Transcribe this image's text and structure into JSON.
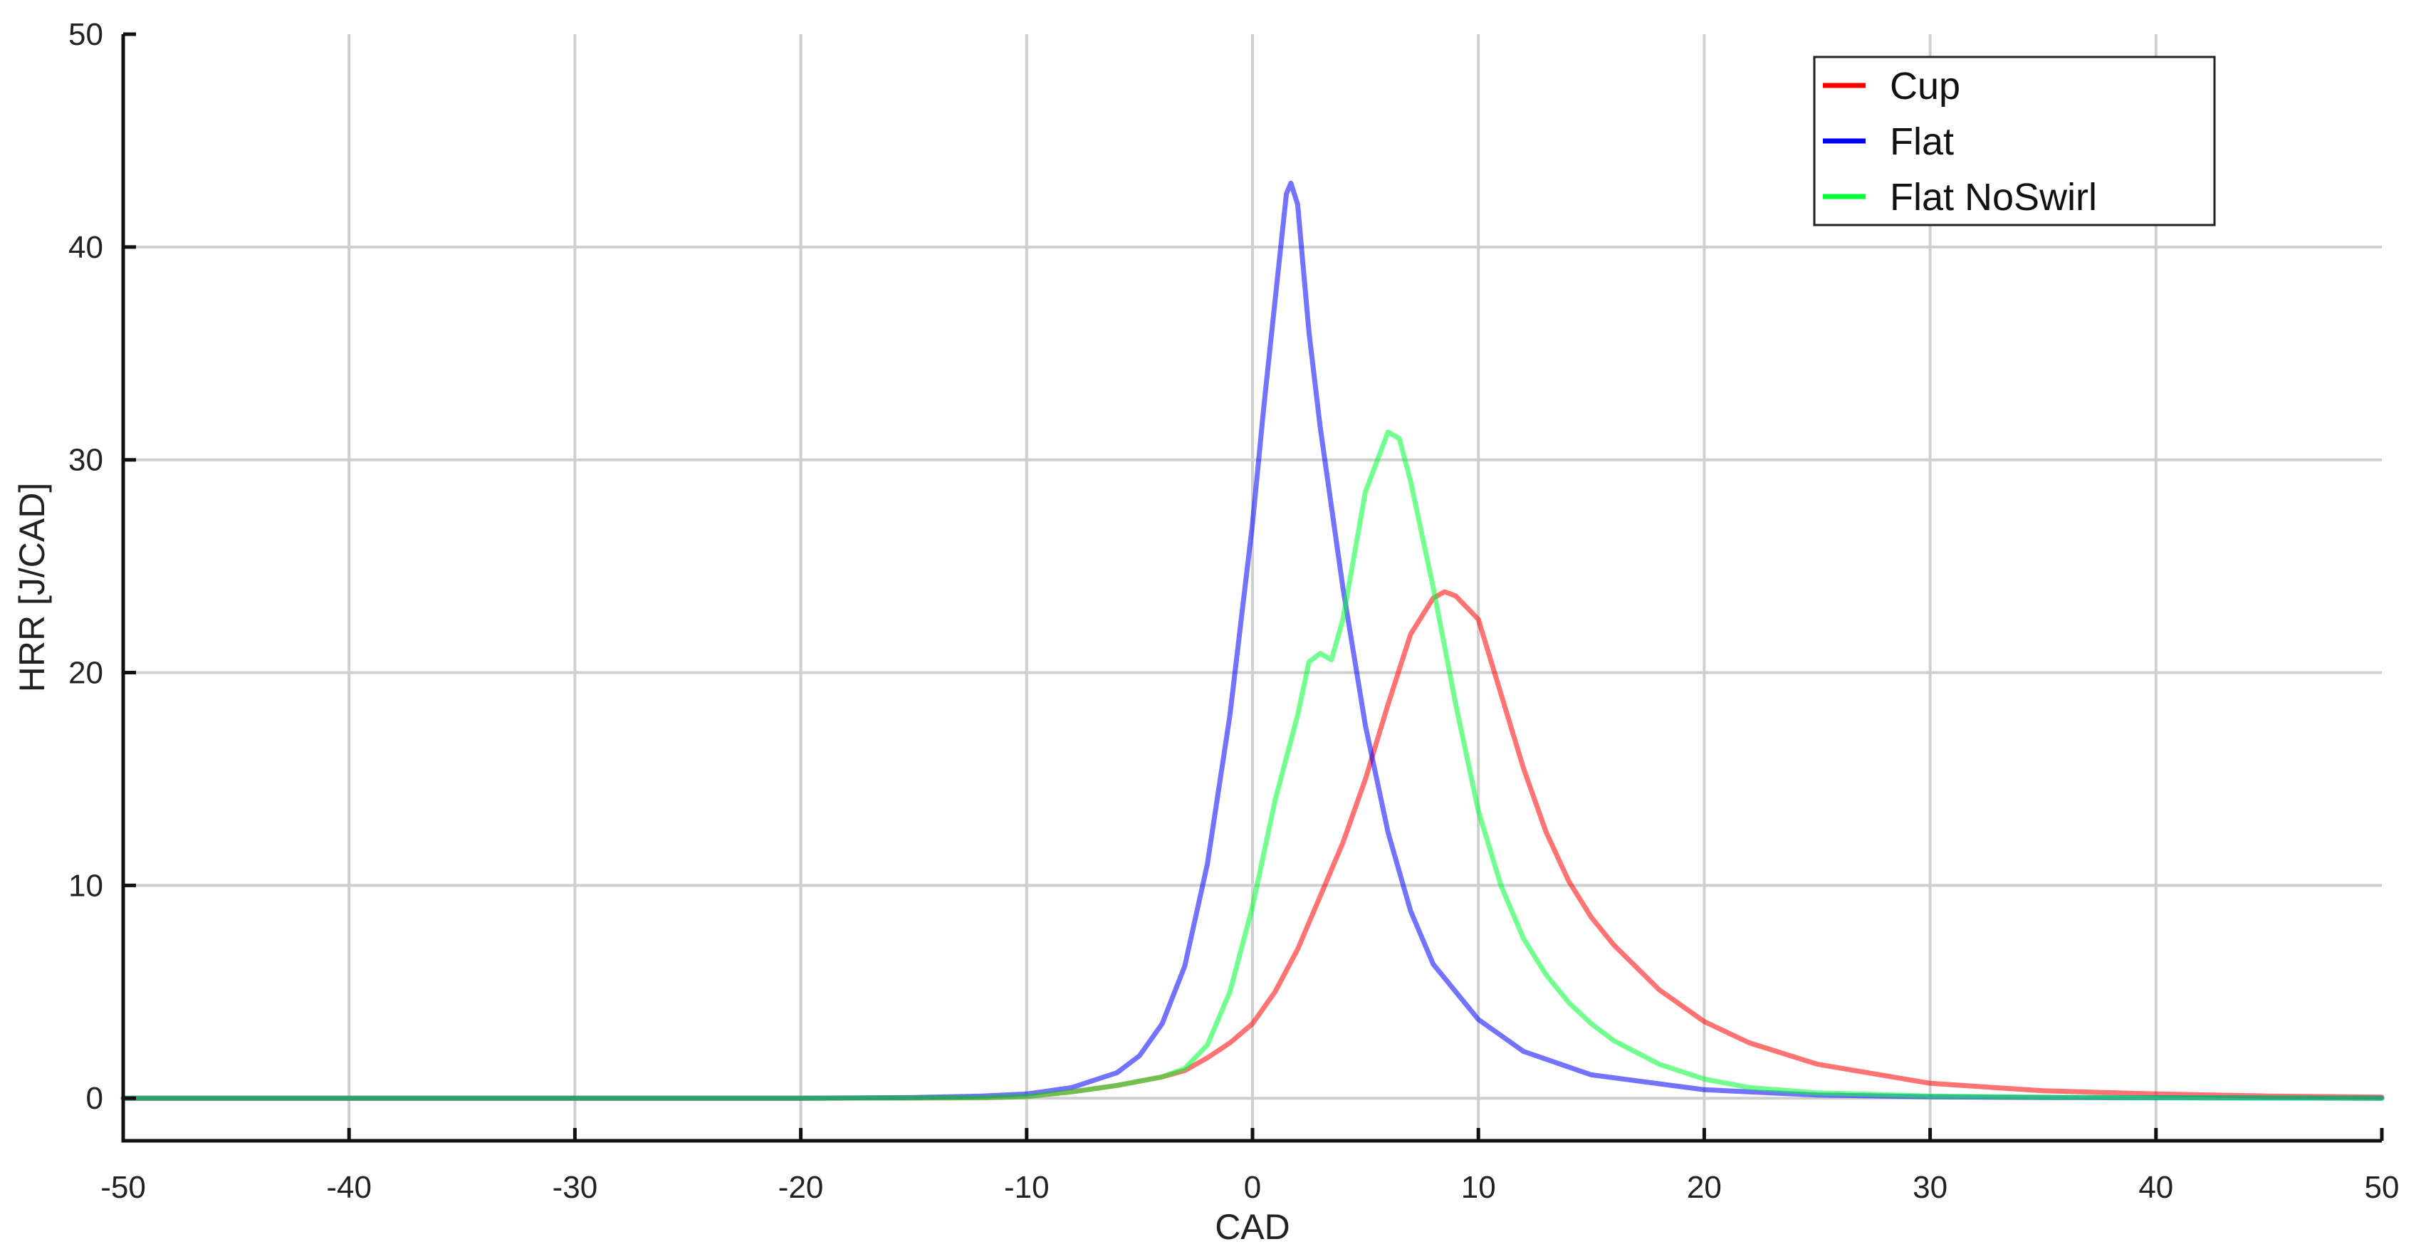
{
  "chart_data": {
    "type": "line",
    "xlabel": "CAD",
    "ylabel": "HRR [J/CAD]",
    "xlim": [
      -50,
      50
    ],
    "ylim": [
      -2,
      50
    ],
    "xticks": [
      -50,
      -40,
      -30,
      -20,
      -10,
      0,
      10,
      20,
      30,
      40,
      50
    ],
    "yticks": [
      0,
      10,
      20,
      30,
      40,
      50
    ],
    "grid": true,
    "legend_position": "top-right",
    "series": [
      {
        "name": "Cup",
        "color": "#ff0000",
        "x": [
          -50,
          -20,
          -12,
          -10,
          -8,
          -6,
          -4,
          -3,
          -2,
          -1,
          0,
          1,
          2,
          3,
          4,
          5,
          6,
          7,
          8,
          8.5,
          9,
          10,
          11,
          12,
          13,
          14,
          15,
          16,
          18,
          20,
          22,
          25,
          30,
          35,
          40,
          45,
          50
        ],
        "y": [
          0,
          0,
          0.02,
          0.08,
          0.3,
          0.6,
          1.0,
          1.3,
          1.9,
          2.6,
          3.5,
          5.0,
          7.0,
          9.5,
          12.0,
          15.0,
          18.5,
          21.8,
          23.5,
          23.8,
          23.6,
          22.5,
          19.0,
          15.5,
          12.5,
          10.2,
          8.5,
          7.2,
          5.1,
          3.6,
          2.6,
          1.6,
          0.7,
          0.35,
          0.2,
          0.1,
          0.05
        ]
      },
      {
        "name": "Flat",
        "color": "#0000ff",
        "x": [
          -50,
          -20,
          -15,
          -12,
          -10,
          -8,
          -6,
          -5,
          -4,
          -3,
          -2,
          -1,
          0,
          0.5,
          1,
          1.5,
          1.7,
          2,
          2.5,
          3,
          4,
          5,
          6,
          7,
          8,
          10,
          12,
          15,
          20,
          25,
          30,
          35,
          40,
          50
        ],
        "y": [
          0,
          0,
          0.03,
          0.1,
          0.2,
          0.5,
          1.2,
          2.0,
          3.5,
          6.2,
          11.0,
          18.0,
          27.0,
          32.5,
          37.5,
          42.5,
          43.0,
          42.0,
          36.0,
          31.5,
          24.0,
          17.5,
          12.5,
          8.8,
          6.3,
          3.7,
          2.2,
          1.1,
          0.4,
          0.15,
          0.07,
          0.03,
          0.02,
          0
        ]
      },
      {
        "name": "Flat NoSwirl",
        "color": "#00ff33",
        "x": [
          -50,
          -20,
          -12,
          -10,
          -8,
          -6,
          -4,
          -3,
          -2,
          -1,
          0,
          1,
          2,
          2.5,
          3,
          3.5,
          4,
          5,
          6,
          6.5,
          7,
          8,
          9,
          10,
          11,
          12,
          13,
          14,
          15,
          16,
          18,
          20,
          22,
          25,
          30,
          35,
          40,
          50
        ],
        "y": [
          0,
          0,
          0.02,
          0.08,
          0.3,
          0.6,
          1.0,
          1.4,
          2.5,
          5.0,
          9.0,
          14.0,
          18.0,
          20.5,
          20.9,
          20.6,
          22.5,
          28.5,
          31.3,
          31.0,
          29.0,
          24.0,
          18.5,
          13.5,
          10.0,
          7.5,
          5.8,
          4.5,
          3.5,
          2.7,
          1.6,
          0.9,
          0.5,
          0.25,
          0.1,
          0.05,
          0.02,
          0
        ]
      }
    ]
  }
}
